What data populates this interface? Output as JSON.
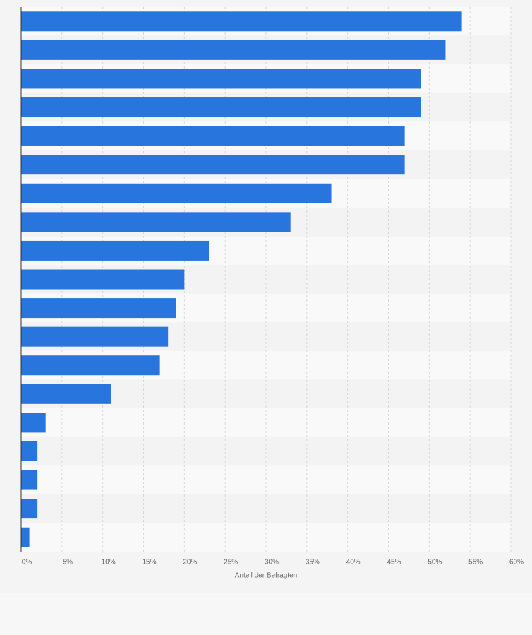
{
  "chart_data": {
    "type": "bar",
    "orientation": "horizontal",
    "categories": [
      null,
      null,
      null,
      null,
      null,
      null,
      null,
      null,
      null,
      null,
      null,
      null,
      null,
      null,
      null,
      null,
      null,
      null,
      null
    ],
    "values": [
      54,
      52,
      49,
      49,
      47,
      47,
      38,
      33,
      23,
      20,
      19,
      18,
      17,
      11,
      3,
      2,
      2,
      2,
      1
    ],
    "color": "#2876dd",
    "x_label": "Anteil der Befragten",
    "xlim": [
      0,
      60
    ],
    "xticks": [
      {
        "value": 0,
        "label": "0%"
      },
      {
        "value": 5,
        "label": "5%"
      },
      {
        "value": 10,
        "label": "10%"
      },
      {
        "value": 15,
        "label": "15%"
      },
      {
        "value": 20,
        "label": "20%"
      },
      {
        "value": 25,
        "label": "25%"
      },
      {
        "value": 30,
        "label": "30%"
      },
      {
        "value": 35,
        "label": "35%"
      },
      {
        "value": 40,
        "label": "40%"
      },
      {
        "value": 45,
        "label": "45%"
      },
      {
        "value": 50,
        "label": "50%"
      },
      {
        "value": 55,
        "label": "55%"
      },
      {
        "value": 60,
        "label": "60%"
      }
    ],
    "grid": true
  }
}
